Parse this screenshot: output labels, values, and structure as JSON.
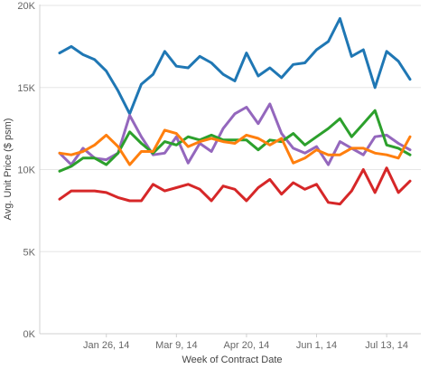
{
  "chart_data": {
    "type": "line",
    "xlabel": "Week of Contract Date",
    "ylabel": "Avg. Unit Price ($ psm)",
    "ylim": [
      0,
      20000
    ],
    "y_ticks": [
      0,
      5000,
      10000,
      15000,
      20000
    ],
    "y_tick_labels": [
      "0K",
      "5K",
      "10K",
      "15K",
      "20K"
    ],
    "x_tick_labels": [
      {
        "label": "Jan 26, 14",
        "date": "2014-01-26"
      },
      {
        "label": "Mar 9, 14",
        "date": "2014-03-09"
      },
      {
        "label": "Apr 20, 14",
        "date": "2014-04-20"
      },
      {
        "label": "Jun 1, 14",
        "date": "2014-06-01"
      },
      {
        "label": "Jul 13, 14",
        "date": "2014-07-13"
      }
    ],
    "x": [
      "2013-12-29",
      "2014-01-05",
      "2014-01-12",
      "2014-01-19",
      "2014-01-26",
      "2014-02-02",
      "2014-02-09",
      "2014-02-16",
      "2014-02-23",
      "2014-03-02",
      "2014-03-09",
      "2014-03-16",
      "2014-03-23",
      "2014-03-30",
      "2014-04-06",
      "2014-04-13",
      "2014-04-20",
      "2014-04-27",
      "2014-05-04",
      "2014-05-11",
      "2014-05-18",
      "2014-05-25",
      "2014-06-01",
      "2014-06-08",
      "2014-06-15",
      "2014-06-22",
      "2014-06-29",
      "2014-07-06",
      "2014-07-13",
      "2014-07-20",
      "2014-07-27"
    ],
    "grid": true,
    "legend": "none",
    "series": [
      {
        "color": "#1f77b4",
        "values": [
          17100,
          17500,
          17000,
          16700,
          16000,
          14800,
          13400,
          15200,
          15800,
          17200,
          16300,
          16200,
          16900,
          16500,
          15800,
          15400,
          17100,
          15700,
          16200,
          15600,
          16400,
          16500,
          17300,
          17800,
          19200,
          16900,
          17300,
          15000,
          17200,
          16600,
          15500
        ]
      },
      {
        "color": "#9467bd",
        "values": [
          11000,
          10300,
          11300,
          10700,
          10600,
          11000,
          13300,
          12000,
          10900,
          11000,
          12000,
          10400,
          11600,
          11100,
          12500,
          13400,
          13800,
          12800,
          14000,
          12200,
          11300,
          11000,
          11400,
          10300,
          11700,
          11300,
          10900,
          12000,
          12100,
          11600,
          11200
        ]
      },
      {
        "color": "#2ca02c",
        "values": [
          9900,
          10200,
          10700,
          10700,
          10300,
          11000,
          12300,
          11600,
          11000,
          11700,
          11500,
          12000,
          11800,
          12100,
          11800,
          11800,
          11800,
          11200,
          11800,
          11700,
          12200,
          11500,
          12000,
          12500,
          13100,
          12000,
          12800,
          13600,
          11500,
          11300,
          10900
        ]
      },
      {
        "color": "#ff7f0e",
        "values": [
          11000,
          10900,
          11100,
          11500,
          12100,
          11400,
          10300,
          11100,
          11100,
          12400,
          12200,
          11400,
          11700,
          11900,
          11700,
          11600,
          12100,
          11900,
          11500,
          11900,
          10400,
          10700,
          11200,
          10900,
          10900,
          11300,
          11300,
          11000,
          10900,
          10700,
          12000
        ]
      },
      {
        "color": "#d62728",
        "values": [
          8200,
          8700,
          8700,
          8700,
          8600,
          8300,
          8100,
          8100,
          9100,
          8700,
          8900,
          9100,
          8800,
          8100,
          9000,
          8800,
          8100,
          8900,
          9400,
          8500,
          9200,
          8800,
          9100,
          8000,
          7900,
          8700,
          10000,
          8600,
          10100,
          8600,
          9300
        ]
      }
    ]
  }
}
